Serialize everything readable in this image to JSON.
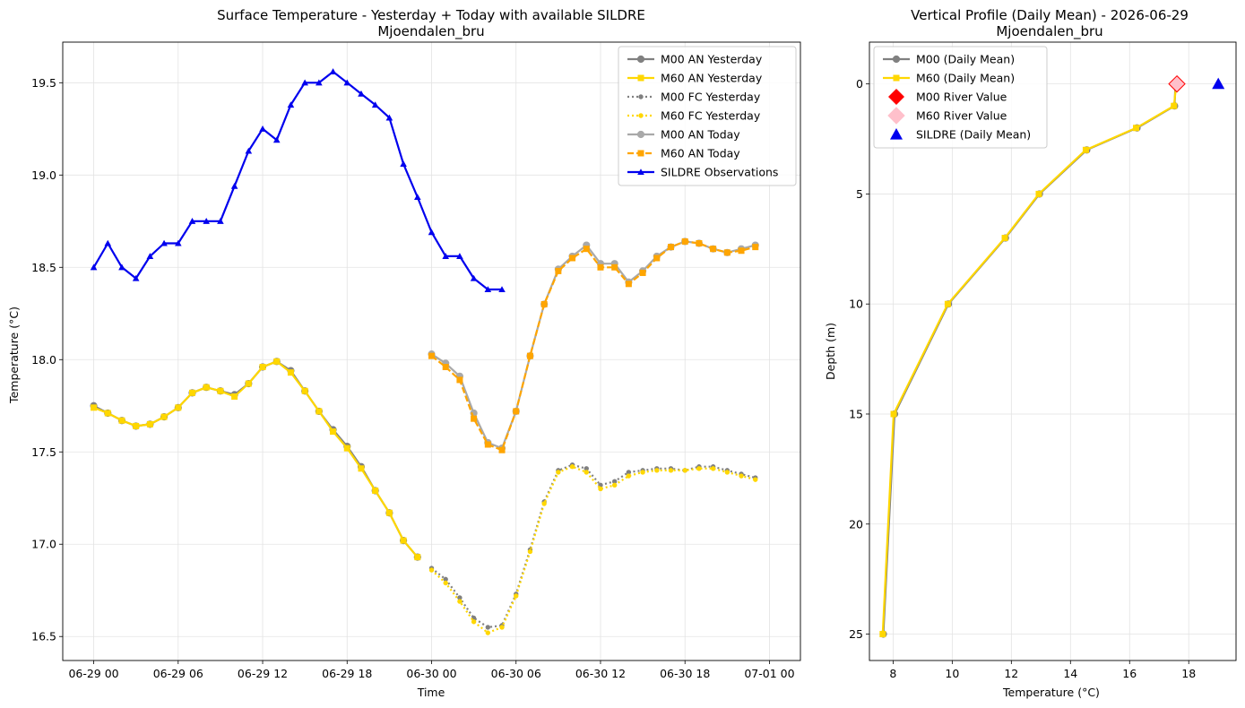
{
  "chart_data": [
    {
      "type": "line",
      "title": "Surface Temperature - Yesterday + Today with available SILDRE",
      "subtitle": "Mjoendalen_bru",
      "xlabel": "Time",
      "ylabel": "Temperature (°C)",
      "xlim": [
        -2.2,
        50.2
      ],
      "ylim": [
        16.37,
        19.72
      ],
      "x_unit": "hours since 06-29 00",
      "xticks": [
        0,
        6,
        12,
        18,
        24,
        30,
        36,
        42,
        48
      ],
      "xtick_labels": [
        "06-29 00",
        "06-29 06",
        "06-29 12",
        "06-29 18",
        "06-30 00",
        "06-30 06",
        "06-30 12",
        "06-30 18",
        "07-01 00"
      ],
      "yticks": [
        16.5,
        17.0,
        17.5,
        18.0,
        18.5,
        19.0,
        19.5
      ],
      "ytick_labels": [
        "16.5",
        "17.0",
        "17.5",
        "18.0",
        "18.5",
        "19.0",
        "19.5"
      ],
      "grid": true,
      "legend_position": "top-right",
      "series": [
        {
          "name": "M00 AN Yesterday",
          "color": "#808080",
          "style": "solid",
          "marker": "circle",
          "width": 2.2,
          "x": [
            0,
            1,
            2,
            3,
            4,
            5,
            6,
            7,
            8,
            9,
            10,
            11,
            12,
            13,
            14,
            15,
            16,
            17,
            18,
            19,
            20,
            21,
            22,
            23
          ],
          "y": [
            17.75,
            17.71,
            17.67,
            17.64,
            17.65,
            17.69,
            17.74,
            17.82,
            17.85,
            17.83,
            17.81,
            17.87,
            17.96,
            17.99,
            17.94,
            17.83,
            17.72,
            17.62,
            17.53,
            17.42,
            17.29,
            17.17,
            17.02,
            16.93
          ]
        },
        {
          "name": "M60 AN Yesterday",
          "color": "#FFD700",
          "style": "solid",
          "marker": "square",
          "width": 2.2,
          "x": [
            0,
            1,
            2,
            3,
            4,
            5,
            6,
            7,
            8,
            9,
            10,
            11,
            12,
            13,
            14,
            15,
            16,
            17,
            18,
            19,
            20,
            21,
            22,
            23
          ],
          "y": [
            17.74,
            17.71,
            17.67,
            17.64,
            17.65,
            17.69,
            17.74,
            17.82,
            17.85,
            17.83,
            17.8,
            17.87,
            17.96,
            17.99,
            17.93,
            17.83,
            17.72,
            17.61,
            17.52,
            17.41,
            17.29,
            17.17,
            17.02,
            16.93
          ]
        },
        {
          "name": "M00 FC Yesterday",
          "color": "#808080",
          "style": "dotted",
          "marker": "smallcircle",
          "width": 2.2,
          "x": [
            24,
            25,
            26,
            27,
            28,
            29,
            30,
            31,
            32,
            33,
            34,
            35,
            36,
            37,
            38,
            39,
            40,
            41,
            42,
            43,
            44,
            45,
            46,
            47
          ],
          "y": [
            16.87,
            16.81,
            16.71,
            16.6,
            16.55,
            16.56,
            16.73,
            16.97,
            17.23,
            17.4,
            17.43,
            17.41,
            17.32,
            17.34,
            17.39,
            17.4,
            17.41,
            17.41,
            17.4,
            17.42,
            17.42,
            17.4,
            17.38,
            17.36
          ]
        },
        {
          "name": "M60 FC Yesterday",
          "color": "#FFD700",
          "style": "dotted",
          "marker": "smallcircle",
          "width": 2.2,
          "x": [
            24,
            25,
            26,
            27,
            28,
            29,
            30,
            31,
            32,
            33,
            34,
            35,
            36,
            37,
            38,
            39,
            40,
            41,
            42,
            43,
            44,
            45,
            46,
            47
          ],
          "y": [
            16.86,
            16.79,
            16.69,
            16.58,
            16.52,
            16.55,
            16.72,
            16.96,
            17.22,
            17.39,
            17.42,
            17.39,
            17.3,
            17.32,
            17.37,
            17.39,
            17.4,
            17.4,
            17.4,
            17.41,
            17.41,
            17.39,
            17.37,
            17.35
          ]
        },
        {
          "name": "M00 AN Today",
          "color": "#A9A9A9",
          "style": "solid",
          "marker": "circle",
          "width": 2.2,
          "x": [
            24,
            25,
            26,
            27,
            28,
            29,
            30,
            31,
            32,
            33,
            34,
            35,
            36,
            37,
            38,
            39,
            40,
            41,
            42,
            43,
            44,
            45,
            46,
            47
          ],
          "y": [
            18.03,
            17.98,
            17.91,
            17.71,
            17.55,
            17.52,
            17.72,
            18.02,
            18.3,
            18.49,
            18.56,
            18.62,
            18.52,
            18.52,
            18.42,
            18.48,
            18.56,
            18.61,
            18.64,
            18.63,
            18.6,
            18.58,
            18.6,
            18.62
          ]
        },
        {
          "name": "M60 AN Today",
          "color": "#FFA500",
          "style": "dashed",
          "marker": "square",
          "width": 2.2,
          "x": [
            24,
            25,
            26,
            27,
            28,
            29,
            30,
            31,
            32,
            33,
            34,
            35,
            36,
            37,
            38,
            39,
            40,
            41,
            42,
            43,
            44,
            45,
            46,
            47
          ],
          "y": [
            18.02,
            17.96,
            17.89,
            17.68,
            17.54,
            17.51,
            17.72,
            18.02,
            18.3,
            18.48,
            18.55,
            18.6,
            18.5,
            18.5,
            18.41,
            18.47,
            18.55,
            18.61,
            18.64,
            18.63,
            18.6,
            18.58,
            18.59,
            18.61
          ]
        },
        {
          "name": "SILDRE Observations",
          "color": "#0000EE",
          "style": "solid",
          "marker": "triangle",
          "width": 2.2,
          "x": [
            0,
            1,
            2,
            3,
            4,
            5,
            6,
            7,
            8,
            9,
            10,
            11,
            12,
            13,
            14,
            15,
            16,
            17,
            18,
            19,
            20,
            21,
            22,
            23,
            24,
            25,
            26,
            27,
            28,
            29
          ],
          "y": [
            18.5,
            18.63,
            18.5,
            18.44,
            18.56,
            18.63,
            18.63,
            18.75,
            18.75,
            18.75,
            18.94,
            19.13,
            19.25,
            19.19,
            19.38,
            19.5,
            19.5,
            19.56,
            19.5,
            19.44,
            19.38,
            19.31,
            19.06,
            18.88,
            18.69,
            18.56,
            18.56,
            18.44,
            18.38,
            18.38
          ]
        }
      ]
    },
    {
      "type": "line",
      "title": "Vertical Profile (Daily Mean) - 2026-06-29",
      "subtitle": "Mjoendalen_bru",
      "xlabel": "Temperature (°C)",
      "ylabel": "Depth (m)",
      "xlim": [
        7.2,
        19.6
      ],
      "ylim": [
        26.2,
        -1.9
      ],
      "y_inverted": true,
      "xticks": [
        8,
        10,
        12,
        14,
        16,
        18
      ],
      "xtick_labels": [
        "8",
        "10",
        "12",
        "14",
        "16",
        "18"
      ],
      "yticks": [
        0,
        5,
        10,
        15,
        20,
        25
      ],
      "ytick_labels": [
        "0",
        "5",
        "10",
        "15",
        "20",
        "25"
      ],
      "grid": true,
      "legend_position": "top-left",
      "series": [
        {
          "name": "M00 (Daily Mean)",
          "color": "#808080",
          "style": "solid",
          "marker": "circle",
          "width": 2.2,
          "x": [
            7.67,
            8.05,
            9.87,
            11.8,
            12.95,
            14.55,
            16.25,
            17.52,
            17.55
          ],
          "y": [
            25,
            15,
            10,
            7,
            5,
            3,
            2,
            1,
            0
          ]
        },
        {
          "name": "M60 (Daily Mean)",
          "color": "#FFD700",
          "style": "solid",
          "marker": "square",
          "width": 2.2,
          "x": [
            7.65,
            8.02,
            9.85,
            11.78,
            12.93,
            14.52,
            16.22,
            17.5,
            17.58
          ],
          "y": [
            25,
            15,
            10,
            7,
            5,
            3,
            2,
            1,
            0
          ]
        },
        {
          "name": "M00 River Value",
          "color": "#FF0000",
          "style": "none",
          "marker": "diamond",
          "x": [
            17.6
          ],
          "y": [
            0
          ]
        },
        {
          "name": "M60 River Value",
          "color": "#FFC0CB",
          "style": "none",
          "marker": "diamond",
          "x": [
            17.6
          ],
          "y": [
            0
          ]
        },
        {
          "name": "SILDRE (Daily Mean)",
          "color": "#0000EE",
          "style": "none",
          "marker": "triangle",
          "x": [
            19.0
          ],
          "y": [
            0
          ]
        }
      ]
    }
  ]
}
